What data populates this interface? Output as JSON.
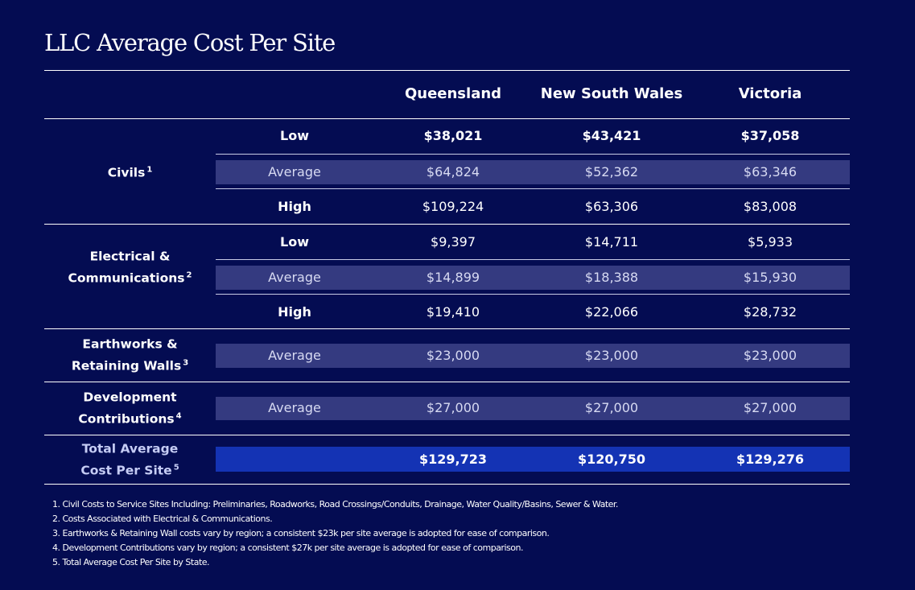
{
  "title": "LLC Average Cost Per Site",
  "columns": [
    "Queensland",
    "New South Wales",
    "Victoria"
  ],
  "categories": {
    "civils": {
      "label": "Civils",
      "note": "1"
    },
    "electrical": {
      "line1": "Electrical &",
      "line2": "Communications",
      "note": "2"
    },
    "earthworks": {
      "line1": "Earthworks &",
      "line2": "Retaining Walls",
      "note": "3"
    },
    "development": {
      "line1": "Development",
      "line2": "Contributions",
      "note": "4"
    },
    "total": {
      "line1": "Total Average",
      "line2": "Cost Per Site",
      "note": "5"
    }
  },
  "rows": [
    {
      "level": "Low",
      "values": [
        "$38,021",
        "$43,421",
        "$37,058"
      ]
    },
    {
      "level": "Average",
      "values": [
        "$64,824",
        "$52,362",
        "$63,346"
      ]
    },
    {
      "level": "High",
      "values": [
        "$109,224",
        "$63,306",
        "$83,008"
      ]
    },
    {
      "level": "Low",
      "values": [
        "$9,397",
        "$14,711",
        "$5,933"
      ]
    },
    {
      "level": "Average",
      "values": [
        "$14,899",
        "$18,388",
        "$15,930"
      ]
    },
    {
      "level": "High",
      "values": [
        "$19,410",
        "$22,066",
        "$28,732"
      ]
    },
    {
      "level": "Average",
      "values": [
        "$23,000",
        "$23,000",
        "$23,000"
      ]
    },
    {
      "level": "Average",
      "values": [
        "$27,000",
        "$27,000",
        "$27,000"
      ]
    },
    {
      "level": "",
      "values": [
        "$129,723",
        "$120,750",
        "$129,276"
      ]
    }
  ],
  "footnotes": [
    "1. Civil Costs to Service Sites Including: Preliminaries, Roadworks, Road Crossings/Conduits, Drainage, Water Quality/Basins, Sewer & Water.",
    "2. Costs Associated with Electrical & Communications.",
    "3. Earthworks & Retaining Wall costs vary by region; a consistent $23k per site average is adopted for ease of comparison.",
    "4. Development Contributions vary by region; a consistent $27k per site average is adopted for ease of comparison.",
    "5. Total Average Cost Per Site by State."
  ],
  "colors": {
    "background": "#040c52",
    "average_band": "#343a80",
    "total_band": "#1433b4",
    "text": "#ffffff"
  }
}
